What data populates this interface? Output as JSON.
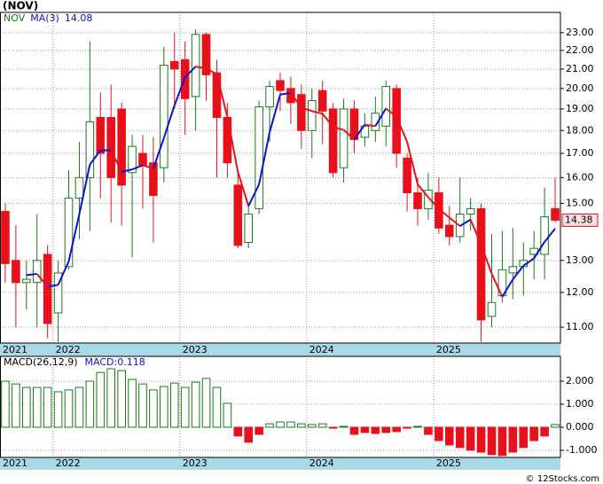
{
  "chart_data": {
    "type": "candlestick",
    "title": "(NOV)",
    "ticker": "NOV",
    "categories": [
      "2021",
      null,
      null,
      null,
      null,
      "2022",
      null,
      null,
      null,
      null,
      null,
      null,
      null,
      null,
      null,
      null,
      null,
      "2023",
      null,
      null,
      null,
      null,
      null,
      null,
      null,
      null,
      null,
      null,
      null,
      "2024",
      null,
      null,
      null,
      null,
      null,
      null,
      null,
      null,
      null,
      null,
      null,
      "2025",
      null,
      null,
      null,
      null,
      null,
      null,
      null,
      null,
      null,
      null,
      null
    ],
    "open": [
      14.7,
      13.0,
      12.3,
      12.3,
      13.2,
      11.4,
      12.8,
      15.2,
      16.0,
      18.6,
      18.6,
      19.0,
      16.2,
      17.0,
      16.6,
      16.4,
      21.4,
      21.5,
      19.6,
      22.9,
      20.8,
      18.6,
      15.7,
      13.6,
      14.8,
      19.1,
      20.4,
      20.0,
      19.7,
      18.0,
      19.9,
      19.0,
      16.4,
      19.0,
      17.7,
      18.0,
      18.2,
      20.0,
      16.8,
      15.4,
      14.8,
      15.4,
      14.2,
      13.8,
      14.6,
      14.8,
      11.3,
      11.9,
      12.6,
      12.8,
      13.2,
      13.2,
      14.8
    ],
    "high": [
      15.0,
      14.2,
      13.0,
      14.6,
      13.5,
      13.0,
      16.3,
      17.5,
      22.5,
      19.8,
      20.2,
      19.3,
      17.8,
      17.8,
      17.7,
      22.2,
      23.0,
      22.5,
      23.2,
      23.0,
      21.5,
      19.3,
      16.3,
      15.0,
      19.4,
      20.4,
      20.8,
      20.6,
      20.2,
      20.0,
      20.4,
      19.3,
      19.5,
      19.4,
      18.8,
      19.6,
      20.4,
      20.2,
      17.0,
      16.0,
      16.2,
      16.0,
      14.9,
      16.0,
      15.2,
      15.0,
      13.9,
      14.0,
      14.1,
      13.6,
      14.0,
      15.6,
      16.0
    ],
    "low": [
      12.3,
      11.0,
      11.5,
      11.0,
      10.7,
      10.6,
      12.7,
      13.7,
      14.0,
      15.2,
      14.3,
      14.2,
      13.1,
      14.8,
      13.6,
      15.8,
      19.0,
      17.8,
      18.0,
      19.4,
      16.0,
      16.0,
      13.4,
      13.4,
      14.6,
      17.5,
      18.9,
      18.3,
      17.2,
      16.8,
      17.4,
      16.0,
      15.8,
      17.0,
      17.3,
      17.5,
      17.3,
      16.4,
      14.7,
      14.2,
      14.4,
      13.9,
      13.5,
      13.6,
      14.0,
      10.6,
      11.0,
      11.7,
      11.8,
      11.9,
      12.4,
      12.4,
      14.3
    ],
    "close": [
      12.9,
      12.3,
      12.4,
      13.0,
      11.1,
      12.6,
      15.2,
      16.0,
      18.4,
      17.0,
      16.0,
      15.7,
      17.3,
      16.5,
      15.3,
      21.2,
      21.0,
      19.5,
      22.9,
      20.7,
      18.6,
      16.6,
      13.5,
      14.6,
      19.1,
      20.1,
      19.9,
      19.3,
      18.0,
      19.4,
      18.9,
      16.2,
      19.0,
      17.6,
      18.2,
      18.8,
      20.1,
      17.0,
      15.4,
      14.8,
      15.5,
      14.1,
      13.8,
      14.6,
      14.8,
      11.2,
      11.7,
      12.7,
      12.8,
      13.0,
      13.4,
      14.5,
      14.38
    ],
    "up_color": "#1a7a1a",
    "down_color": "#e8101a",
    "ylim": [
      10.57,
      24.2
    ],
    "log_scale": true,
    "grid": true,
    "yticks": [
      {
        "value": 11,
        "label": "11.00"
      },
      {
        "value": 12,
        "label": "12.00"
      },
      {
        "value": 13,
        "label": "13.00"
      },
      {
        "value": 15,
        "label": "15.00"
      },
      {
        "value": 16,
        "label": "16.00"
      },
      {
        "value": 17,
        "label": "17.00"
      },
      {
        "value": 18,
        "label": "18.00"
      },
      {
        "value": 19,
        "label": "19.00"
      },
      {
        "value": 20,
        "label": "20.00"
      },
      {
        "value": 21,
        "label": "21.00"
      },
      {
        "value": 22,
        "label": "22.00"
      },
      {
        "value": 23,
        "label": "23.00"
      }
    ],
    "ma": {
      "name": "MA(3)",
      "up_color": "#1010d0",
      "down_color": "#e8101a",
      "values": [
        null,
        null,
        12.53,
        12.57,
        12.17,
        12.23,
        12.97,
        14.6,
        16.53,
        17.13,
        17.13,
        16.23,
        16.33,
        16.5,
        16.37,
        17.67,
        19.17,
        20.57,
        21.13,
        21.03,
        20.73,
        18.63,
        16.23,
        14.9,
        15.73,
        17.93,
        19.7,
        19.77,
        19.07,
        18.9,
        18.77,
        18.17,
        18.03,
        17.6,
        18.27,
        18.2,
        19.03,
        18.63,
        17.5,
        15.73,
        15.23,
        14.8,
        14.47,
        14.17,
        14.4,
        13.53,
        12.57,
        11.87,
        12.4,
        12.83,
        13.07,
        13.62,
        14.08
      ]
    },
    "macd": {
      "name": "MACD(26,12,9)",
      "label": "MACD:",
      "up_color": "#1a7a1a",
      "down_color": "#e8101a",
      "values": [
        2.0,
        1.88,
        1.73,
        1.73,
        1.73,
        1.54,
        1.62,
        1.73,
        2.0,
        2.38,
        2.54,
        2.46,
        2.08,
        1.88,
        1.62,
        1.77,
        1.92,
        1.73,
        1.96,
        2.12,
        1.73,
        1.04,
        -0.38,
        -0.65,
        -0.31,
        0.15,
        0.23,
        0.23,
        0.15,
        0.12,
        0.15,
        -0.04,
        0.04,
        -0.31,
        -0.23,
        -0.27,
        -0.23,
        -0.19,
        -0.04,
        0.04,
        -0.31,
        -0.58,
        -0.77,
        -0.88,
        -1.0,
        -1.08,
        -1.19,
        -1.23,
        -1.08,
        -0.88,
        -0.58,
        -0.38,
        0.118
      ],
      "ylim": [
        -1.31,
        3.08
      ],
      "yticks": [
        {
          "value": -1,
          "label": "-1.000"
        },
        {
          "value": 0,
          "label": "0.000"
        },
        {
          "value": 1,
          "label": "1.000"
        },
        {
          "value": 2,
          "label": "2.000"
        }
      ]
    },
    "source": "© 12Stocks.com"
  }
}
